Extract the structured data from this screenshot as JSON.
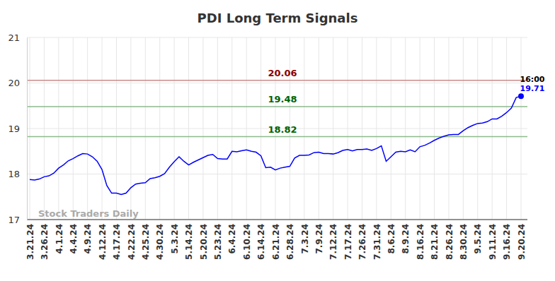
{
  "chart_data": {
    "type": "line",
    "title": "PDI Long Term Signals",
    "categories": [
      "3.21.24",
      null,
      null,
      "3.26.24",
      null,
      null,
      "4.1.24",
      null,
      null,
      "4.4.24",
      null,
      null,
      "4.9.24",
      null,
      null,
      "4.12.24",
      null,
      null,
      "4.17.24",
      null,
      null,
      "4.22.24",
      null,
      null,
      "4.25.24",
      null,
      null,
      "4.30.24",
      null,
      null,
      "5.3.24",
      null,
      null,
      "5.14.24",
      null,
      null,
      "5.20.24",
      null,
      null,
      "5.23.24",
      null,
      null,
      "6.4.24",
      null,
      null,
      "6.10.24",
      null,
      null,
      "6.14.24",
      null,
      null,
      "6.21.24",
      null,
      null,
      "6.28.24",
      null,
      null,
      "7.3.24",
      null,
      null,
      "7.9.24",
      null,
      null,
      "7.12.24",
      null,
      null,
      "7.17.24",
      null,
      null,
      "7.26.24",
      null,
      null,
      "7.31.24",
      null,
      null,
      "8.6.24",
      null,
      null,
      "8.9.24",
      null,
      null,
      "8.16.24",
      null,
      null,
      "8.21.24",
      null,
      null,
      "8.26.24",
      null,
      null,
      "8.30.24",
      null,
      null,
      "9.5.24",
      null,
      null,
      "9.11.24",
      null,
      null,
      "9.16.24",
      null,
      null,
      "9.20.24"
    ],
    "series": [
      {
        "name": "PDI",
        "color": "#0000ff",
        "values": [
          17.88,
          17.87,
          17.89,
          17.94,
          17.96,
          18.02,
          18.13,
          18.2,
          18.29,
          18.34,
          18.4,
          18.45,
          18.44,
          18.38,
          18.28,
          18.1,
          17.75,
          17.58,
          17.58,
          17.55,
          17.58,
          17.7,
          17.78,
          17.8,
          17.81,
          17.9,
          17.92,
          17.95,
          18.01,
          18.15,
          18.27,
          18.38,
          18.28,
          18.2,
          18.26,
          18.31,
          18.36,
          18.41,
          18.43,
          18.34,
          18.33,
          18.33,
          18.5,
          18.49,
          18.51,
          18.53,
          18.5,
          18.48,
          18.4,
          18.14,
          18.15,
          18.09,
          18.13,
          18.15,
          18.17,
          18.35,
          18.41,
          18.41,
          18.42,
          18.47,
          18.48,
          18.45,
          18.45,
          18.44,
          18.47,
          18.52,
          18.54,
          18.51,
          18.54,
          18.54,
          18.55,
          18.52,
          18.56,
          18.62,
          18.28,
          18.38,
          18.48,
          18.5,
          18.49,
          18.53,
          18.49,
          18.6,
          18.63,
          18.68,
          18.74,
          18.79,
          18.83,
          18.86,
          18.87,
          18.87,
          18.95,
          19.02,
          19.07,
          19.11,
          19.12,
          19.15,
          19.21,
          19.21,
          19.27,
          19.35,
          19.45,
          19.68,
          19.71
        ]
      }
    ],
    "ylim": [
      17,
      21
    ],
    "yticks": [
      17,
      18,
      19,
      20,
      21
    ],
    "grid": true,
    "reference_lines": [
      {
        "value": 20.06,
        "color": "#8b0000"
      },
      {
        "value": 19.48,
        "color": "#006400"
      },
      {
        "value": 18.82,
        "color": "#006400"
      }
    ],
    "annotations": [
      {
        "text": "16:00"
      },
      {
        "text": "Stock Traders Daily"
      }
    ]
  }
}
